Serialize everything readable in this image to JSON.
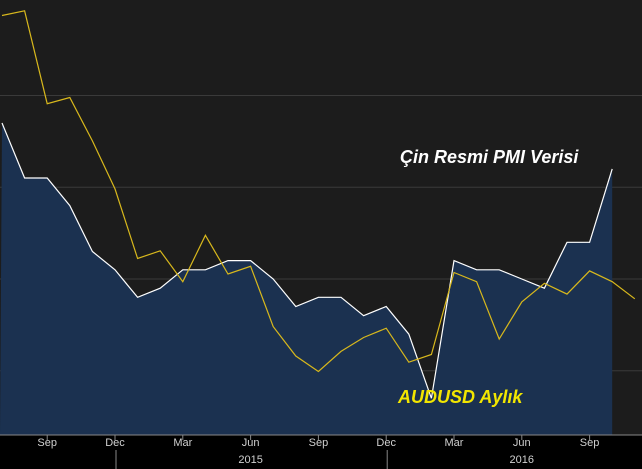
{
  "chart_data": {
    "type": "line",
    "categories": [
      null,
      null,
      "Sep",
      null,
      null,
      "Dec",
      null,
      null,
      "Mar",
      null,
      null,
      "Jun",
      null,
      null,
      "Sep",
      null,
      null,
      "Dec",
      null,
      null,
      "Mar",
      null,
      null,
      "Jun",
      null,
      null,
      "Sep",
      null,
      null
    ],
    "years": [
      "2015",
      "2016"
    ],
    "series": [
      {
        "name": "Çin Resmi PMI Verisi",
        "color": "#ffffff",
        "fill": "#1b3150",
        "axis": "y",
        "values": [
          51.7,
          51.1,
          51.1,
          50.8,
          50.3,
          50.1,
          49.8,
          49.9,
          50.1,
          50.1,
          50.2,
          50.2,
          50.0,
          49.7,
          49.8,
          49.8,
          49.6,
          49.7,
          49.4,
          48.7,
          50.2,
          50.1,
          50.1,
          50.0,
          49.9,
          50.4,
          50.4,
          51.2,
          null
        ]
      },
      {
        "name": "AUDUSD Aylık",
        "color": "#d8b81c",
        "axis": "y2",
        "values": [
          0.93,
          0.933,
          0.873,
          0.877,
          0.849,
          0.818,
          0.773,
          0.778,
          0.758,
          0.788,
          0.763,
          0.768,
          0.729,
          0.71,
          0.7,
          0.713,
          0.722,
          0.728,
          0.706,
          0.711,
          0.764,
          0.758,
          0.721,
          0.745,
          0.757,
          0.75,
          0.765,
          0.758,
          0.747
        ]
      }
    ],
    "ylim": [
      48.3,
      53.04
    ],
    "yticks": [
      49,
      50,
      51,
      52
    ],
    "y2lim": [
      0.659,
      0.94
    ],
    "grid": true
  }
}
